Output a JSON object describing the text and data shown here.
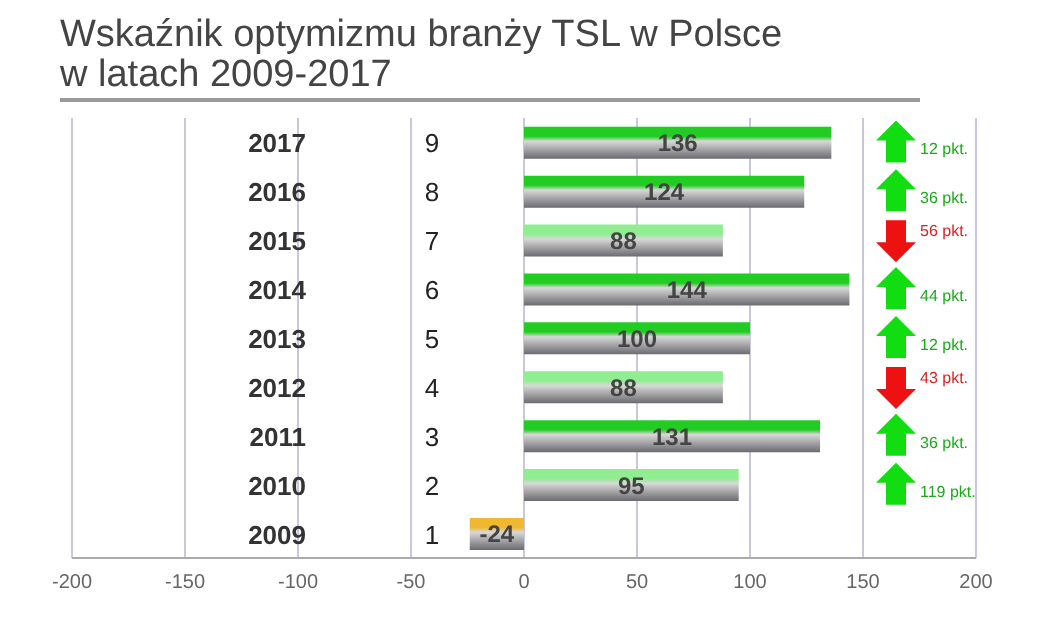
{
  "chart_data": {
    "type": "bar",
    "orientation": "horizontal",
    "title": "Wskaźnik optymizmu  branży TSL w Polsce\nw latach 2009-2017",
    "categories": [
      "2017",
      "2016",
      "2015",
      "2014",
      "2013",
      "2012",
      "2011",
      "2010",
      "2009"
    ],
    "values": [
      136,
      124,
      88,
      144,
      100,
      88,
      131,
      95,
      -24
    ],
    "colors": [
      "#22cc22",
      "#22cc22",
      "#90ee90",
      "#22cc22",
      "#22cc22",
      "#90ee90",
      "#22cc22",
      "#90ee90",
      "#f0b830"
    ],
    "xlim": [
      -200,
      200
    ],
    "xticks": [
      -200,
      -150,
      -100,
      -50,
      0,
      50,
      100,
      150,
      200
    ],
    "grid": "x",
    "data_labels": true,
    "annotations": [
      "9",
      "8",
      "7",
      "6",
      "5",
      "4",
      "3",
      "2",
      "1",
      "12 pkt.",
      "36 pkt.",
      "56 pkt.",
      "44 pkt.",
      "12 pkt.",
      "43 pkt.",
      "36 pkt.",
      "119 pkt."
    ]
  }
}
